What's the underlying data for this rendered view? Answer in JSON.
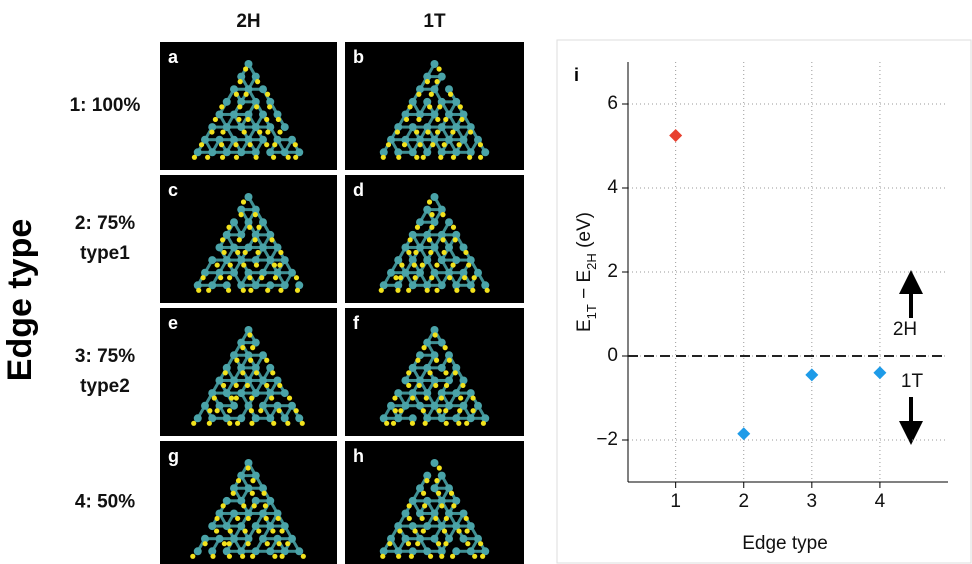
{
  "figure": {
    "column_labels": [
      "2H",
      "1T"
    ],
    "row_labels": [
      [
        "1: 100%"
      ],
      [
        "2: 75%",
        "type1"
      ],
      [
        "3: 75%",
        "type2"
      ],
      [
        "4: 50%"
      ]
    ],
    "side_label": "Edge type",
    "panel_letters": [
      "a",
      "b",
      "c",
      "d",
      "e",
      "f",
      "g",
      "h"
    ]
  },
  "chart_data": {
    "type": "scatter",
    "panel_label": "i",
    "x": [
      1,
      2,
      3,
      4
    ],
    "values": [
      5.25,
      -1.85,
      -0.45,
      -0.4
    ],
    "colors": [
      "#e8402f",
      "#1e9be8",
      "#1e9be8",
      "#1e9be8"
    ],
    "xlim": [
      0.3,
      5.0
    ],
    "ylim": [
      -3,
      7
    ],
    "xticks": [
      1,
      2,
      3,
      4
    ],
    "yticks": [
      {
        "value": -2,
        "label": "−2"
      },
      0,
      2,
      4,
      6
    ],
    "xlabel": "Edge type",
    "ylabel": [
      {
        "text": "E"
      },
      {
        "text": "1T",
        "sub": true
      },
      {
        "text": " − E"
      },
      {
        "text": "2H",
        "sub": true
      },
      {
        "text": " (eV)"
      }
    ],
    "reference_line": 0,
    "grid": true,
    "annotations": [
      "2H",
      "1T"
    ]
  }
}
